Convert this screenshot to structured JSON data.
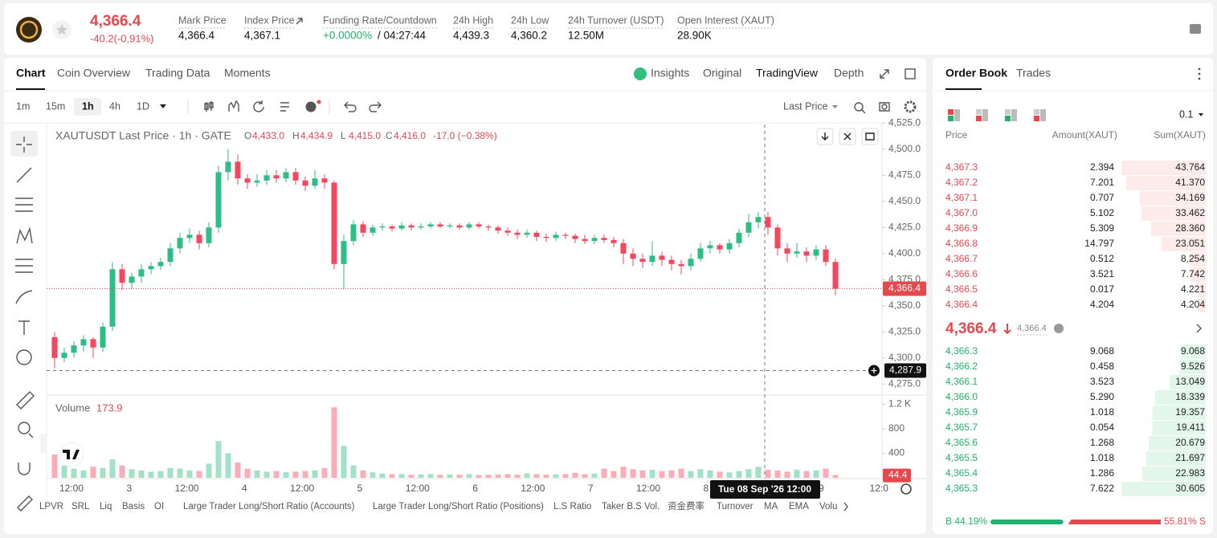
{
  "header": {
    "price": "4,366.4",
    "change": "-40.2(-0.91%)",
    "stats": [
      {
        "label": "Mark Price",
        "value": "4,366.4"
      },
      {
        "label": "Index Price",
        "value": "4,367.1"
      },
      {
        "label": "Funding Rate/Countdown",
        "value": "+0.0000%",
        "extra": "/ 04:27:44"
      },
      {
        "label": "24h High",
        "value": "4,439.3"
      },
      {
        "label": "24h Low",
        "value": "4,360.2"
      },
      {
        "label": "24h Turnover (USDT)",
        "value": "12.50M"
      },
      {
        "label": "Open Interest (XAUT)",
        "value": "28.90K"
      }
    ]
  },
  "chart_tabs": [
    "Chart",
    "Coin Overview",
    "Trading Data",
    "Moments"
  ],
  "view_tabs": [
    "Insights",
    "Original",
    "TradingView",
    "Depth"
  ],
  "intervals": [
    "1m",
    "15m",
    "1h",
    "4h",
    "1D"
  ],
  "price_source": "Last Price",
  "chart_data": {
    "type": "candlestick",
    "title": "XAUTUSDT Last Price · 1h · GATE",
    "ohlc_legend": [
      {
        "label": "O",
        "value": "4,433.0"
      },
      {
        "label": "H",
        "value": "4,434.9"
      },
      {
        "label": "L",
        "value": "4,415.0"
      },
      {
        "label": "C",
        "value": "4,416.0"
      }
    ],
    "change": "-17.0 (−0.38%)",
    "up_color": "#2ebd85",
    "down_color": "#f6465d",
    "ylim": [
      4266,
      4526
    ],
    "yticks": [
      {
        "value": 4275,
        "label": "4,275.0"
      },
      {
        "value": 4300,
        "label": "4,300.0"
      },
      {
        "value": 4325,
        "label": "4,325.0"
      },
      {
        "value": 4350,
        "label": "4,350.0"
      },
      {
        "value": 4375,
        "label": "4,375.0"
      },
      {
        "value": 4400,
        "label": "4,400.0"
      },
      {
        "value": 4425,
        "label": "4,425.0"
      },
      {
        "value": 4450,
        "label": "4,450.0"
      },
      {
        "value": 4475,
        "label": "4,475.0"
      },
      {
        "value": 4500,
        "label": "4,500.0"
      },
      {
        "value": 4525,
        "label": "4,525.0"
      }
    ],
    "last_price": {
      "value": 4366.4,
      "label": "4,366.4"
    },
    "crosshair_price": {
      "value": 4287.9,
      "label": "4,287.9"
    },
    "crosshair_time": "Tue 08 Sep '26   12:00",
    "x_labels": [
      "12:00",
      "3",
      "12:00",
      "4",
      "12:00",
      "5",
      "12:00",
      "6",
      "12:00",
      "7",
      "12:00",
      "8",
      null,
      "9",
      "12:0"
    ],
    "candles": [
      [
        4320,
        4325,
        4290,
        4300
      ],
      [
        4300,
        4310,
        4296,
        4305
      ],
      [
        4305,
        4316,
        4300,
        4312
      ],
      [
        4312,
        4322,
        4306,
        4318
      ],
      [
        4318,
        4320,
        4300,
        4310
      ],
      [
        4310,
        4334,
        4306,
        4330
      ],
      [
        4330,
        4392,
        4326,
        4385
      ],
      [
        4385,
        4390,
        4365,
        4372
      ],
      [
        4372,
        4382,
        4366,
        4378
      ],
      [
        4378,
        4390,
        4372,
        4385
      ],
      [
        4385,
        4392,
        4380,
        4388
      ],
      [
        4388,
        4396,
        4384,
        4392
      ],
      [
        4392,
        4410,
        4388,
        4405
      ],
      [
        4405,
        4420,
        4400,
        4415
      ],
      [
        4415,
        4424,
        4410,
        4418
      ],
      [
        4418,
        4422,
        4404,
        4410
      ],
      [
        4410,
        4430,
        4406,
        4425
      ],
      [
        4425,
        4484,
        4420,
        4478
      ],
      [
        4478,
        4500,
        4470,
        4488
      ],
      [
        4488,
        4495,
        4466,
        4472
      ],
      [
        4472,
        4476,
        4462,
        4468
      ],
      [
        4468,
        4476,
        4464,
        4470
      ],
      [
        4470,
        4480,
        4466,
        4475
      ],
      [
        4475,
        4480,
        4468,
        4472
      ],
      [
        4472,
        4482,
        4468,
        4478
      ],
      [
        4478,
        4482,
        4466,
        4470
      ],
      [
        4470,
        4474,
        4460,
        4465
      ],
      [
        4465,
        4480,
        4462,
        4472
      ],
      [
        4472,
        4476,
        4462,
        4468
      ],
      [
        4468,
        4470,
        4385,
        4390
      ],
      [
        4390,
        4418,
        4366,
        4412
      ],
      [
        4412,
        4432,
        4408,
        4428
      ],
      [
        4428,
        4431,
        4416,
        4420
      ],
      [
        4420,
        4428,
        4417,
        4425
      ],
      [
        4425,
        4429,
        4422,
        4426
      ],
      [
        4426,
        4428,
        4421,
        4424
      ],
      [
        4424,
        4430,
        4422,
        4427
      ],
      [
        4427,
        4429,
        4422,
        4425
      ],
      [
        4425,
        4429,
        4423,
        4426
      ],
      [
        4426,
        4430,
        4424,
        4428
      ],
      [
        4428,
        4430,
        4424,
        4426
      ],
      [
        4426,
        4429,
        4424,
        4427
      ],
      [
        4427,
        4429,
        4423,
        4425
      ],
      [
        4425,
        4430,
        4423,
        4428
      ],
      [
        4428,
        4430,
        4424,
        4426
      ],
      [
        4426,
        4428,
        4422,
        4425
      ],
      [
        4425,
        4427,
        4419,
        4422
      ],
      [
        4422,
        4425,
        4417,
        4420
      ],
      [
        4420,
        4423,
        4414,
        4418
      ],
      [
        4418,
        4423,
        4415,
        4420
      ],
      [
        4420,
        4422,
        4412,
        4416
      ],
      [
        4416,
        4419,
        4411,
        4415
      ],
      [
        4415,
        4421,
        4412,
        4418
      ],
      [
        4418,
        4420,
        4414,
        4417
      ],
      [
        4417,
        4419,
        4410,
        4414
      ],
      [
        4414,
        4418,
        4409,
        4412
      ],
      [
        4412,
        4418,
        4409,
        4415
      ],
      [
        4415,
        4418,
        4410,
        4413
      ],
      [
        4413,
        4416,
        4406,
        4410
      ],
      [
        4410,
        4414,
        4390,
        4400
      ],
      [
        4400,
        4405,
        4388,
        4395
      ],
      [
        4395,
        4400,
        4386,
        4392
      ],
      [
        4392,
        4412,
        4388,
        4398
      ],
      [
        4398,
        4402,
        4388,
        4394
      ],
      [
        4394,
        4398,
        4384,
        4390
      ],
      [
        4390,
        4394,
        4380,
        4388
      ],
      [
        4388,
        4400,
        4384,
        4395
      ],
      [
        4395,
        4410,
        4392,
        4405
      ],
      [
        4405,
        4412,
        4400,
        4408
      ],
      [
        4408,
        4410,
        4400,
        4404
      ],
      [
        4404,
        4414,
        4400,
        4410
      ],
      [
        4410,
        4424,
        4406,
        4420
      ],
      [
        4420,
        4438,
        4416,
        4430
      ],
      [
        4430,
        4440,
        4424,
        4435
      ],
      [
        4435,
        4440,
        4418,
        4425
      ],
      [
        4425,
        4428,
        4398,
        4405
      ],
      [
        4405,
        4410,
        4392,
        4400
      ],
      [
        4400,
        4410,
        4396,
        4402
      ],
      [
        4402,
        4406,
        4392,
        4398
      ],
      [
        4398,
        4408,
        4394,
        4404
      ],
      [
        4404,
        4408,
        4388,
        4392
      ],
      [
        4392,
        4395,
        4360,
        4366.4
      ]
    ],
    "volume_label": "Volume",
    "volume_value": "173.9",
    "volume_ylim": [
      0,
      1311
    ],
    "volume_ticks": [
      400,
      800,
      {
        "value": 1200,
        "label": "1.2 K"
      }
    ],
    "volumes": [
      380,
      200,
      150,
      120,
      180,
      160,
      300,
      200,
      140,
      120,
      100,
      110,
      160,
      150,
      120,
      110,
      230,
      600,
      400,
      250,
      150,
      120,
      100,
      110,
      90,
      100,
      110,
      120,
      160,
      1150,
      520,
      200,
      120,
      90,
      70,
      60,
      60,
      50,
      55,
      60,
      50,
      55,
      50,
      60,
      45,
      50,
      55,
      60,
      50,
      70,
      60,
      50,
      55,
      60,
      80,
      60,
      70,
      150,
      110,
      180,
      140,
      120,
      130,
      110,
      120,
      150,
      110,
      140,
      120,
      100,
      90,
      110,
      140,
      180,
      130,
      120,
      100,
      130,
      110,
      120,
      150,
      44.4
    ]
  },
  "indicators": [
    "LPVR",
    "SRL",
    "Liq",
    "Basis",
    "OI",
    "Large Trader Long/Short Ratio (Accounts)",
    "Large Trader Long/Short Ratio (Positions)",
    "L.S Ratio",
    "Taker B.S Vol.",
    "资金费率",
    "Turnover",
    "MA",
    "EMA",
    "Volu"
  ],
  "order_book": {
    "tabs": [
      "Order Book",
      "Trades"
    ],
    "precision": "0.1",
    "columns": [
      "Price",
      "Amount(XAUT)",
      "Sum(XAUT)"
    ],
    "asks": [
      [
        "4,367.3",
        "2.394",
        "43.764"
      ],
      [
        "4,367.2",
        "7.201",
        "41.370"
      ],
      [
        "4,367.1",
        "0.707",
        "34.169"
      ],
      [
        "4,367.0",
        "5.102",
        "33.462"
      ],
      [
        "4,366.9",
        "5.309",
        "28.360"
      ],
      [
        "4,366.8",
        "14.797",
        "23.051"
      ],
      [
        "4,366.7",
        "0.512",
        "8.254"
      ],
      [
        "4,366.6",
        "3.521",
        "7.742"
      ],
      [
        "4,366.5",
        "0.017",
        "4.221"
      ],
      [
        "4,366.4",
        "4.204",
        "4.204"
      ]
    ],
    "mid_price": "4,366.4",
    "mark_price": "4,366.4",
    "bids": [
      [
        "4,366.3",
        "9.068",
        "9.068"
      ],
      [
        "4,366.2",
        "0.458",
        "9.526"
      ],
      [
        "4,366.1",
        "3.523",
        "13.049"
      ],
      [
        "4,366.0",
        "5.290",
        "18.339"
      ],
      [
        "4,365.9",
        "1.018",
        "19.357"
      ],
      [
        "4,365.7",
        "0.054",
        "19.411"
      ],
      [
        "4,365.6",
        "1.268",
        "20.679"
      ],
      [
        "4,365.5",
        "1.018",
        "21.697"
      ],
      [
        "4,365.4",
        "1.286",
        "22.983"
      ],
      [
        "4,365.3",
        "7.622",
        "30.605"
      ]
    ],
    "ratio": {
      "buy": 44.19,
      "buy_label": "B 44.19%",
      "sell": 55.81,
      "sell_label": "55.81% S"
    }
  }
}
